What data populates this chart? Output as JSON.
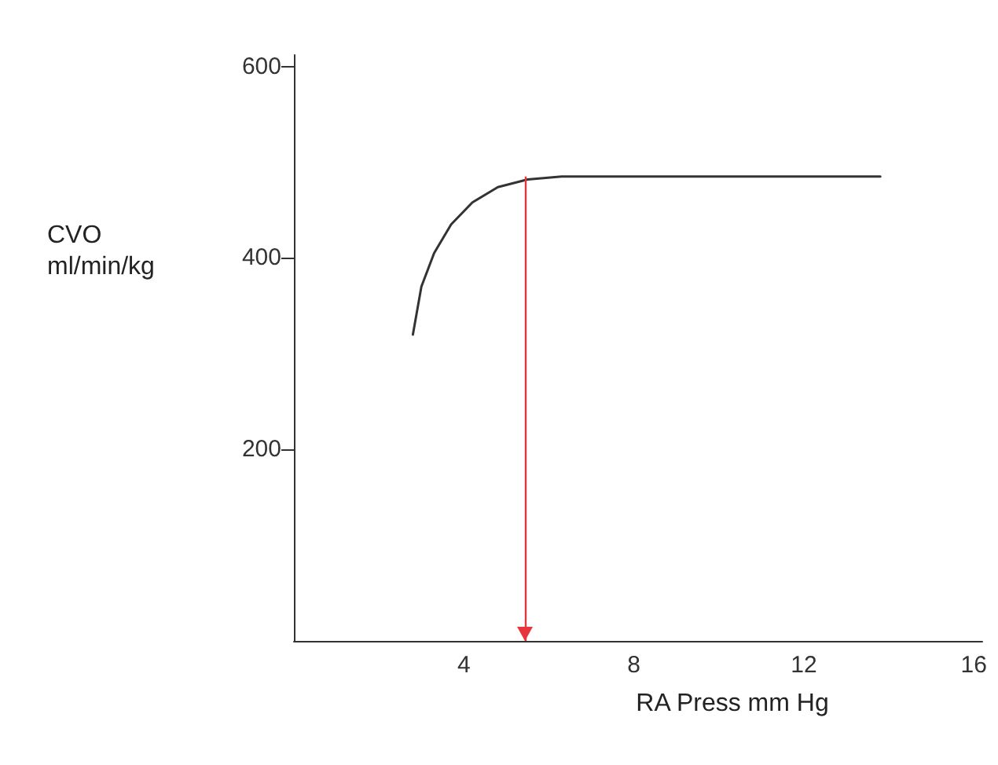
{
  "chart_data": {
    "type": "line",
    "xlabel": "RA Press mm Hg",
    "ylabel": "CVO\nml/min/kg",
    "x": [
      2.8,
      3,
      3.3,
      3.7,
      4.2,
      4.8,
      5.5,
      6.3,
      13.8
    ],
    "series": [
      {
        "color": "#333333",
        "values": [
          320,
          370,
          405,
          435,
          458,
          474,
          482,
          485,
          485
        ]
      }
    ],
    "xlim": [
      0,
      16.2
    ],
    "xticks": [
      4,
      8,
      12,
      16
    ],
    "ylim": [
      0,
      612
    ],
    "yticks": [
      200,
      400,
      600
    ],
    "ref_lines": [
      {
        "axis": "x",
        "value": 5.45,
        "color": "#e8343c"
      }
    ],
    "grid": false,
    "marker": "none",
    "line_style": "solid"
  }
}
